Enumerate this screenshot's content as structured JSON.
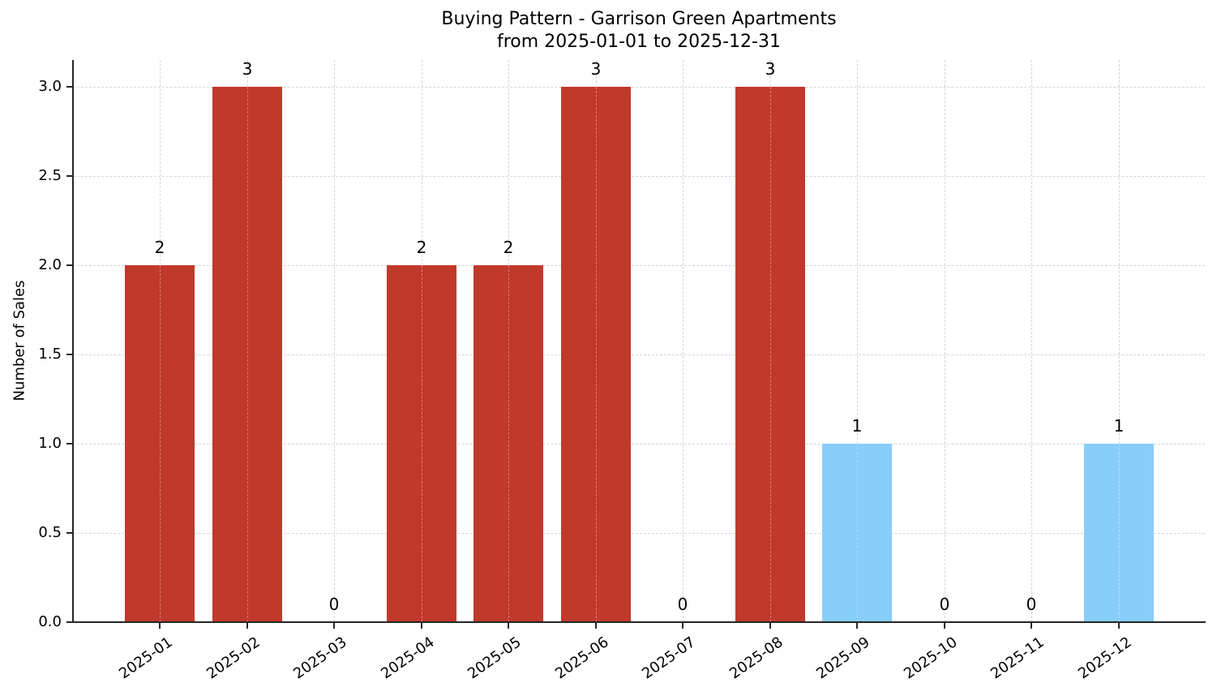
{
  "chart": {
    "title_line1": "Buying Pattern - Garrison Green Apartments",
    "title_line2": "from 2025-01-01 to 2025-12-31",
    "ylabel": "Number of Sales",
    "yticks": [
      "0.0",
      "0.5",
      "1.0",
      "1.5",
      "2.0",
      "2.5",
      "3.0"
    ],
    "colors": {
      "primary": "#c0392b",
      "secondary": "#87cefa",
      "axis": "#262626",
      "grid": "#d6d6d6"
    }
  },
  "chart_data": {
    "type": "bar",
    "title": "Buying Pattern - Garrison Green Apartments\nfrom 2025-01-01 to 2025-12-31",
    "xlabel": "",
    "ylabel": "Number of Sales",
    "ylim": [
      0,
      3.15
    ],
    "yticks": [
      0.0,
      0.5,
      1.0,
      1.5,
      2.0,
      2.5,
      3.0
    ],
    "grid": true,
    "legend": null,
    "categories": [
      "2025-01",
      "2025-02",
      "2025-03",
      "2025-04",
      "2025-05",
      "2025-06",
      "2025-07",
      "2025-08",
      "2025-09",
      "2025-10",
      "2025-11",
      "2025-12"
    ],
    "values": [
      2,
      3,
      0,
      2,
      2,
      3,
      0,
      3,
      1,
      0,
      0,
      1
    ],
    "bar_colors": [
      "#c0392b",
      "#c0392b",
      "#c0392b",
      "#c0392b",
      "#c0392b",
      "#c0392b",
      "#c0392b",
      "#c0392b",
      "#87cefa",
      "#87cefa",
      "#87cefa",
      "#87cefa"
    ],
    "data_labels": [
      "2",
      "3",
      "0",
      "2",
      "2",
      "3",
      "0",
      "3",
      "1",
      "0",
      "0",
      "1"
    ]
  }
}
